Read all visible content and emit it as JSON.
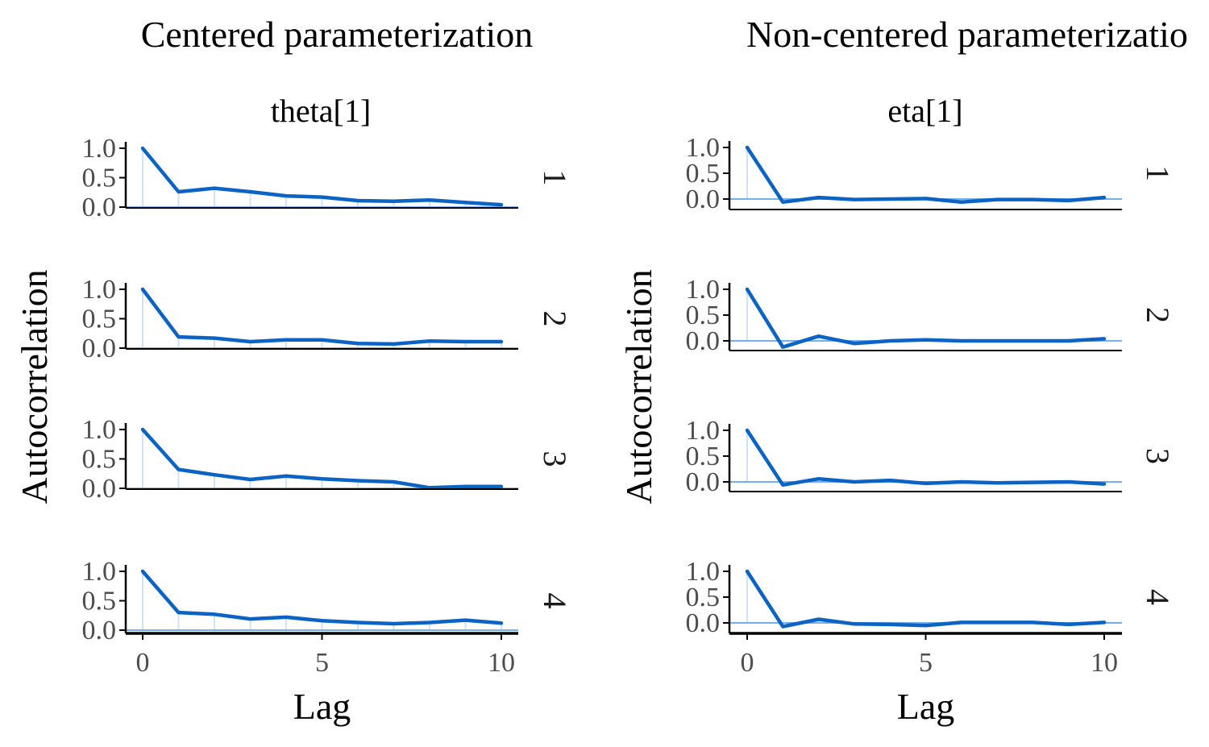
{
  "chart_data": [
    {
      "type": "line",
      "title": "Centered parameterization",
      "facet_label": "theta[1]",
      "xlabel": "Lag",
      "ylabel": "Autocorrelation",
      "xlim": [
        0,
        10
      ],
      "ylim": [
        0,
        1
      ],
      "x_ticks": [
        "0",
        "5",
        "10"
      ],
      "y_ticks": [
        "0.0",
        "0.5",
        "1.0"
      ],
      "x": [
        0,
        1,
        2,
        3,
        4,
        5,
        6,
        7,
        8,
        9,
        10
      ],
      "series": [
        {
          "chain": "1",
          "values": [
            1.0,
            0.26,
            0.32,
            0.26,
            0.19,
            0.17,
            0.11,
            0.1,
            0.12,
            0.08,
            0.04
          ]
        },
        {
          "chain": "2",
          "values": [
            1.0,
            0.19,
            0.17,
            0.11,
            0.14,
            0.14,
            0.08,
            0.07,
            0.12,
            0.11,
            0.11
          ]
        },
        {
          "chain": "3",
          "values": [
            1.0,
            0.32,
            0.23,
            0.15,
            0.21,
            0.16,
            0.13,
            0.11,
            0.01,
            0.03,
            0.03
          ]
        },
        {
          "chain": "4",
          "values": [
            1.0,
            0.3,
            0.27,
            0.19,
            0.22,
            0.16,
            0.13,
            0.11,
            0.13,
            0.17,
            0.12
          ]
        }
      ]
    },
    {
      "type": "line",
      "title": "Non-centered parameterizatio",
      "facet_label": "eta[1]",
      "xlabel": "Lag",
      "ylabel": "Autocorrelation",
      "xlim": [
        0,
        10
      ],
      "ylim": [
        -0.07,
        1
      ],
      "x_ticks": [
        "0",
        "5",
        "10"
      ],
      "y_ticks": [
        "0.0",
        "0.5",
        "1.0"
      ],
      "x": [
        0,
        1,
        2,
        3,
        4,
        5,
        6,
        7,
        8,
        9,
        10
      ],
      "series": [
        {
          "chain": "1",
          "values": [
            1.0,
            -0.06,
            0.03,
            -0.01,
            0.0,
            0.01,
            -0.06,
            -0.01,
            -0.01,
            -0.03,
            0.03
          ]
        },
        {
          "chain": "2",
          "values": [
            1.0,
            -0.12,
            0.09,
            -0.05,
            0.0,
            0.02,
            0.0,
            0.0,
            0.0,
            0.0,
            0.04
          ]
        },
        {
          "chain": "3",
          "values": [
            1.0,
            -0.06,
            0.06,
            0.0,
            0.03,
            -0.03,
            0.0,
            -0.02,
            -0.01,
            0.0,
            -0.04
          ]
        },
        {
          "chain": "4",
          "values": [
            1.0,
            -0.07,
            0.07,
            -0.02,
            -0.03,
            -0.05,
            0.01,
            0.01,
            0.01,
            -0.03,
            0.01
          ]
        }
      ]
    }
  ],
  "colors": {
    "line": "#0b63c5",
    "zero_line": "#74b0ec",
    "lag_spikes": "#cfe3f8",
    "axis": "#000000",
    "tick_text": "#4d4d4d"
  }
}
